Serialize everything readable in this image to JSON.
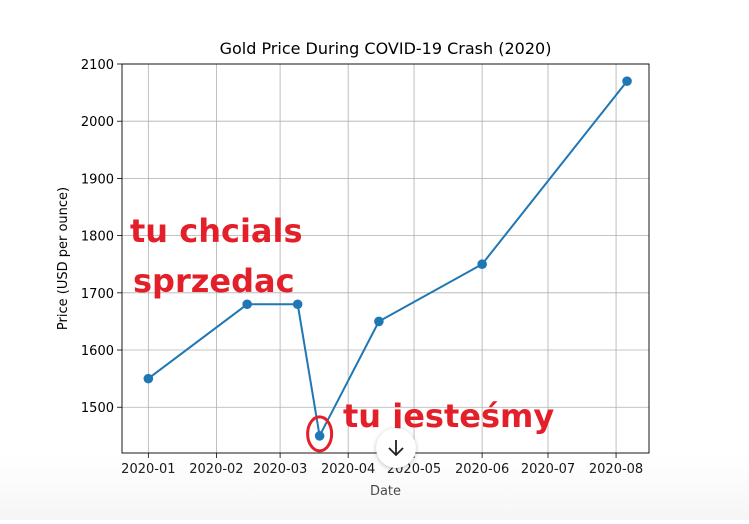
{
  "chart_data": {
    "type": "line",
    "title": "Gold Price During COVID-19 Crash (2020)",
    "xlabel": "Date",
    "ylabel": "Price (USD per ounce)",
    "grid": true,
    "x": [
      "2020-01-01",
      "2020-02-15",
      "2020-03-09",
      "2020-03-19",
      "2020-04-15",
      "2020-06-01",
      "2020-08-06"
    ],
    "values": [
      1550,
      1680,
      1680,
      1450,
      1650,
      1750,
      2070
    ],
    "ylim": [
      1420,
      2100
    ],
    "xlim": [
      "2019-12-20",
      "2020-08-16"
    ],
    "x_ticks": [
      "2020-01",
      "2020-02",
      "2020-03",
      "2020-04",
      "2020-05",
      "2020-06",
      "2020-07",
      "2020-08"
    ],
    "y_ticks": [
      "1500",
      "1600",
      "1700",
      "1800",
      "1900",
      "2000",
      "2100"
    ],
    "line_color": "#1f77b4"
  },
  "annotations": {
    "line1": "tu chcials",
    "line2": "sprzedac",
    "here": "tu jesteśmy",
    "color": "#e3202a"
  },
  "overlay": {
    "scroll_icon": "arrow-down-icon"
  }
}
